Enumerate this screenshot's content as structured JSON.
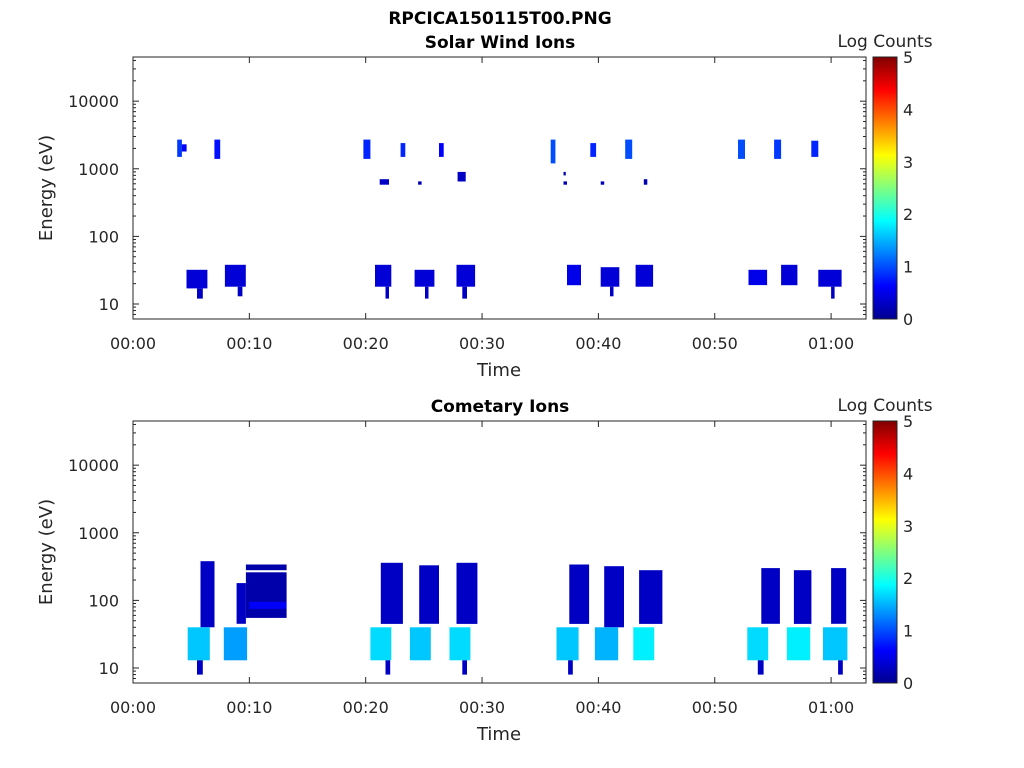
{
  "figure_title": "RPCICA150115T00.PNG",
  "chart_data": [
    {
      "type": "heatmap",
      "title": "Solar Wind Ions",
      "xlabel": "Time",
      "ylabel": "Energy (eV)",
      "y_scale": "log",
      "ylim": [
        6,
        45000
      ],
      "xlim_minutes": [
        0,
        63
      ],
      "x_ticks": [
        "00:00",
        "00:10",
        "00:20",
        "00:30",
        "00:40",
        "00:50",
        "01:00"
      ],
      "y_ticks": [
        "10",
        "100",
        "1000",
        "10000"
      ],
      "colorbar": {
        "label": "Log Counts",
        "min": 0,
        "max": 5,
        "ticks": [
          "0",
          "1",
          "2",
          "3",
          "4",
          "5"
        ],
        "colormap": "jet"
      },
      "cells": [
        {
          "t0": 3.8,
          "t1": 4.2,
          "e0": 1500,
          "e1": 2700,
          "v": 0.9
        },
        {
          "t0": 4.2,
          "t1": 4.6,
          "e0": 1800,
          "e1": 2300,
          "v": 0.6
        },
        {
          "t0": 7.0,
          "t1": 7.5,
          "e0": 1400,
          "e1": 2700,
          "v": 0.7
        },
        {
          "t0": 19.8,
          "t1": 20.4,
          "e0": 1400,
          "e1": 2700,
          "v": 0.8
        },
        {
          "t0": 23.0,
          "t1": 23.4,
          "e0": 1500,
          "e1": 2400,
          "v": 0.8
        },
        {
          "t0": 26.3,
          "t1": 26.7,
          "e0": 1500,
          "e1": 2400,
          "v": 0.6
        },
        {
          "t0": 21.2,
          "t1": 22.0,
          "e0": 580,
          "e1": 700,
          "v": 0.3
        },
        {
          "t0": 24.5,
          "t1": 24.8,
          "e0": 580,
          "e1": 650,
          "v": 0.2
        },
        {
          "t0": 27.9,
          "t1": 28.6,
          "e0": 650,
          "e1": 900,
          "v": 0.3
        },
        {
          "t0": 35.9,
          "t1": 36.3,
          "e0": 1200,
          "e1": 2700,
          "v": 1.0
        },
        {
          "t0": 39.3,
          "t1": 39.8,
          "e0": 1500,
          "e1": 2400,
          "v": 0.8
        },
        {
          "t0": 42.3,
          "t1": 42.9,
          "e0": 1400,
          "e1": 2700,
          "v": 1.0
        },
        {
          "t0": 37.0,
          "t1": 37.2,
          "e0": 800,
          "e1": 900,
          "v": 0.2
        },
        {
          "t0": 37.0,
          "t1": 37.3,
          "e0": 580,
          "e1": 650,
          "v": 0.2
        },
        {
          "t0": 43.9,
          "t1": 44.2,
          "e0": 580,
          "e1": 700,
          "v": 0.2
        },
        {
          "t0": 40.2,
          "t1": 40.5,
          "e0": 580,
          "e1": 650,
          "v": 0.2
        },
        {
          "t0": 52.0,
          "t1": 52.6,
          "e0": 1400,
          "e1": 2700,
          "v": 1.0
        },
        {
          "t0": 55.1,
          "t1": 55.7,
          "e0": 1400,
          "e1": 2700,
          "v": 0.9
        },
        {
          "t0": 58.3,
          "t1": 58.9,
          "e0": 1500,
          "e1": 2600,
          "v": 0.8
        },
        {
          "t0": 4.6,
          "t1": 6.4,
          "e0": 17,
          "e1": 32,
          "v": 0.4
        },
        {
          "t0": 5.5,
          "t1": 6.0,
          "e0": 12,
          "e1": 17,
          "v": 0.3
        },
        {
          "t0": 7.9,
          "t1": 9.7,
          "e0": 18,
          "e1": 38,
          "v": 0.4
        },
        {
          "t0": 9.0,
          "t1": 9.4,
          "e0": 13,
          "e1": 18,
          "v": 0.3
        },
        {
          "t0": 20.8,
          "t1": 22.2,
          "e0": 18,
          "e1": 38,
          "v": 0.4
        },
        {
          "t0": 21.7,
          "t1": 22.0,
          "e0": 12,
          "e1": 18,
          "v": 0.3
        },
        {
          "t0": 24.2,
          "t1": 25.9,
          "e0": 18,
          "e1": 32,
          "v": 0.4
        },
        {
          "t0": 25.1,
          "t1": 25.4,
          "e0": 12,
          "e1": 18,
          "v": 0.3
        },
        {
          "t0": 27.8,
          "t1": 29.4,
          "e0": 18,
          "e1": 38,
          "v": 0.4
        },
        {
          "t0": 28.3,
          "t1": 28.7,
          "e0": 12,
          "e1": 18,
          "v": 0.3
        },
        {
          "t0": 37.3,
          "t1": 38.5,
          "e0": 19,
          "e1": 38,
          "v": 0.5
        },
        {
          "t0": 40.2,
          "t1": 41.8,
          "e0": 18,
          "e1": 35,
          "v": 0.4
        },
        {
          "t0": 41.0,
          "t1": 41.3,
          "e0": 13,
          "e1": 18,
          "v": 0.3
        },
        {
          "t0": 43.2,
          "t1": 44.7,
          "e0": 18,
          "e1": 38,
          "v": 0.4
        },
        {
          "t0": 52.9,
          "t1": 54.5,
          "e0": 19,
          "e1": 32,
          "v": 0.5
        },
        {
          "t0": 55.7,
          "t1": 57.1,
          "e0": 19,
          "e1": 38,
          "v": 0.4
        },
        {
          "t0": 58.9,
          "t1": 60.9,
          "e0": 18,
          "e1": 32,
          "v": 0.4
        },
        {
          "t0": 60.0,
          "t1": 60.3,
          "e0": 12,
          "e1": 18,
          "v": 0.3
        }
      ]
    },
    {
      "type": "heatmap",
      "title": "Cometary Ions",
      "xlabel": "Time",
      "ylabel": "Energy (eV)",
      "y_scale": "log",
      "ylim": [
        6,
        45000
      ],
      "xlim_minutes": [
        0,
        63
      ],
      "x_ticks": [
        "00:00",
        "00:10",
        "00:20",
        "00:30",
        "00:40",
        "00:50",
        "01:00"
      ],
      "y_ticks": [
        "10",
        "100",
        "1000",
        "10000"
      ],
      "colorbar": {
        "label": "Log Counts",
        "min": 0,
        "max": 5,
        "ticks": [
          "0",
          "1",
          "2",
          "3",
          "4",
          "5"
        ],
        "colormap": "jet"
      },
      "cells": [
        {
          "t0": 5.8,
          "t1": 7.0,
          "e0": 40,
          "e1": 380,
          "v": 0.3
        },
        {
          "t0": 4.7,
          "t1": 6.6,
          "e0": 13,
          "e1": 40,
          "v": 1.6
        },
        {
          "t0": 5.5,
          "t1": 6.0,
          "e0": 8,
          "e1": 13,
          "v": 0.3
        },
        {
          "t0": 8.9,
          "t1": 9.7,
          "e0": 45,
          "e1": 180,
          "v": 0.3
        },
        {
          "t0": 7.8,
          "t1": 9.8,
          "e0": 13,
          "e1": 40,
          "v": 1.4
        },
        {
          "t0": 9.7,
          "t1": 13.2,
          "e0": 55,
          "e1": 260,
          "v": 0.15
        },
        {
          "t0": 9.7,
          "t1": 13.2,
          "e0": 280,
          "e1": 340,
          "v": 0.15
        },
        {
          "t0": 10.0,
          "t1": 13.2,
          "e0": 75,
          "e1": 95,
          "v": 0.6
        },
        {
          "t0": 21.3,
          "t1": 23.2,
          "e0": 45,
          "e1": 360,
          "v": 0.3
        },
        {
          "t0": 20.4,
          "t1": 22.2,
          "e0": 13,
          "e1": 40,
          "v": 1.7
        },
        {
          "t0": 21.7,
          "t1": 22.1,
          "e0": 8,
          "e1": 13,
          "v": 0.3
        },
        {
          "t0": 24.6,
          "t1": 26.3,
          "e0": 45,
          "e1": 330,
          "v": 0.3
        },
        {
          "t0": 23.8,
          "t1": 25.6,
          "e0": 13,
          "e1": 40,
          "v": 1.6
        },
        {
          "t0": 27.8,
          "t1": 29.6,
          "e0": 45,
          "e1": 360,
          "v": 0.3
        },
        {
          "t0": 27.2,
          "t1": 29.0,
          "e0": 13,
          "e1": 40,
          "v": 1.7
        },
        {
          "t0": 28.3,
          "t1": 28.7,
          "e0": 8,
          "e1": 13,
          "v": 0.3
        },
        {
          "t0": 37.5,
          "t1": 39.2,
          "e0": 45,
          "e1": 340,
          "v": 0.3
        },
        {
          "t0": 36.4,
          "t1": 38.3,
          "e0": 13,
          "e1": 40,
          "v": 1.6
        },
        {
          "t0": 37.4,
          "t1": 37.8,
          "e0": 8,
          "e1": 13,
          "v": 0.3
        },
        {
          "t0": 40.5,
          "t1": 42.2,
          "e0": 40,
          "e1": 320,
          "v": 0.3
        },
        {
          "t0": 39.7,
          "t1": 41.7,
          "e0": 13,
          "e1": 40,
          "v": 1.5
        },
        {
          "t0": 43.5,
          "t1": 45.5,
          "e0": 45,
          "e1": 280,
          "v": 0.3
        },
        {
          "t0": 43.0,
          "t1": 44.8,
          "e0": 13,
          "e1": 40,
          "v": 1.8
        },
        {
          "t0": 54.0,
          "t1": 55.6,
          "e0": 45,
          "e1": 300,
          "v": 0.3
        },
        {
          "t0": 52.8,
          "t1": 54.6,
          "e0": 13,
          "e1": 40,
          "v": 1.7
        },
        {
          "t0": 53.7,
          "t1": 54.2,
          "e0": 8,
          "e1": 13,
          "v": 0.3
        },
        {
          "t0": 56.8,
          "t1": 58.3,
          "e0": 45,
          "e1": 280,
          "v": 0.3
        },
        {
          "t0": 56.2,
          "t1": 58.2,
          "e0": 13,
          "e1": 40,
          "v": 1.8
        },
        {
          "t0": 60.0,
          "t1": 61.3,
          "e0": 45,
          "e1": 300,
          "v": 0.3
        },
        {
          "t0": 59.3,
          "t1": 61.4,
          "e0": 13,
          "e1": 40,
          "v": 1.6
        },
        {
          "t0": 60.6,
          "t1": 61.0,
          "e0": 8,
          "e1": 13,
          "v": 0.3
        }
      ]
    }
  ]
}
